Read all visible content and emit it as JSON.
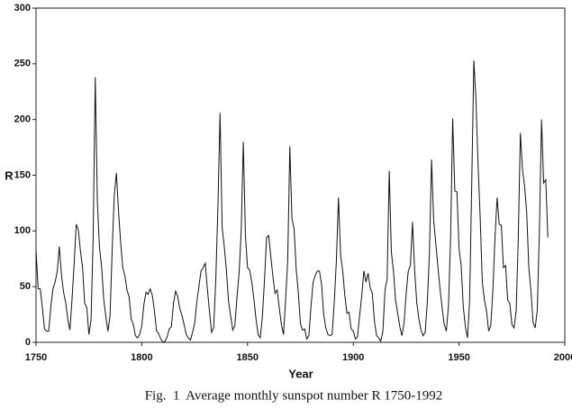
{
  "chart_data": {
    "type": "line",
    "caption": "Fig.  1  Average monthly sunspot number R 1750-1992",
    "x_label": "Year",
    "y_label": "R",
    "color": "#111111",
    "xlim": [
      1750,
      2000
    ],
    "ylim": [
      0,
      300
    ],
    "xticks": [
      1750,
      1800,
      1850,
      1900,
      1950,
      2000
    ],
    "yticks": [
      0,
      50,
      100,
      150,
      200,
      250,
      300
    ],
    "x": [
      1750,
      1751,
      1752,
      1753,
      1754,
      1755,
      1756,
      1757,
      1758,
      1759,
      1760,
      1761,
      1762,
      1763,
      1764,
      1765,
      1766,
      1767,
      1768,
      1769,
      1770,
      1771,
      1772,
      1773,
      1774,
      1775,
      1776,
      1777,
      1778,
      1779,
      1780,
      1781,
      1782,
      1783,
      1784,
      1785,
      1786,
      1787,
      1788,
      1789,
      1790,
      1791,
      1792,
      1793,
      1794,
      1795,
      1796,
      1797,
      1798,
      1799,
      1800,
      1801,
      1802,
      1803,
      1804,
      1805,
      1806,
      1807,
      1808,
      1809,
      1810,
      1811,
      1812,
      1813,
      1814,
      1815,
      1816,
      1817,
      1818,
      1819,
      1820,
      1821,
      1822,
      1823,
      1824,
      1825,
      1826,
      1827,
      1828,
      1829,
      1830,
      1831,
      1832,
      1833,
      1834,
      1835,
      1836,
      1837,
      1838,
      1839,
      1840,
      1841,
      1842,
      1843,
      1844,
      1845,
      1846,
      1847,
      1848,
      1849,
      1850,
      1851,
      1852,
      1853,
      1854,
      1855,
      1856,
      1857,
      1858,
      1859,
      1860,
      1861,
      1862,
      1863,
      1864,
      1865,
      1866,
      1867,
      1868,
      1869,
      1870,
      1871,
      1872,
      1873,
      1874,
      1875,
      1876,
      1877,
      1878,
      1879,
      1880,
      1881,
      1882,
      1883,
      1884,
      1885,
      1886,
      1887,
      1888,
      1889,
      1890,
      1891,
      1892,
      1893,
      1894,
      1895,
      1896,
      1897,
      1898,
      1899,
      1900,
      1901,
      1902,
      1903,
      1904,
      1905,
      1906,
      1907,
      1908,
      1909,
      1910,
      1911,
      1912,
      1913,
      1914,
      1915,
      1916,
      1917,
      1918,
      1919,
      1920,
      1921,
      1922,
      1923,
      1924,
      1925,
      1926,
      1927,
      1928,
      1929,
      1930,
      1931,
      1932,
      1933,
      1934,
      1935,
      1936,
      1937,
      1938,
      1939,
      1940,
      1941,
      1942,
      1943,
      1944,
      1945,
      1946,
      1947,
      1948,
      1949,
      1950,
      1951,
      1952,
      1953,
      1954,
      1955,
      1956,
      1957,
      1958,
      1959,
      1960,
      1961,
      1962,
      1963,
      1964,
      1965,
      1966,
      1967,
      1968,
      1969,
      1970,
      1971,
      1972,
      1973,
      1974,
      1975,
      1976,
      1977,
      1978,
      1979,
      1980,
      1981,
      1982,
      1983,
      1984,
      1985,
      1986,
      1987,
      1988,
      1989,
      1990,
      1991,
      1992
    ],
    "values": [
      83,
      48,
      48,
      31,
      12,
      10,
      10,
      32,
      48,
      54,
      63,
      86,
      61,
      45,
      36,
      21,
      11,
      38,
      70,
      106,
      101,
      82,
      67,
      35,
      31,
      7,
      20,
      93,
      238,
      126,
      85,
      68,
      39,
      23,
      10,
      24,
      83,
      132,
      152,
      118,
      90,
      67,
      60,
      47,
      41,
      21,
      16,
      6,
      4,
      7,
      15,
      34,
      45,
      43,
      48,
      42,
      28,
      10,
      8,
      3,
      0,
      1,
      5,
      12,
      14,
      35,
      46,
      41,
      30,
      24,
      16,
      7,
      4,
      2,
      9,
      17,
      36,
      50,
      64,
      67,
      71,
      48,
      28,
      9,
      13,
      57,
      122,
      206,
      103,
      86,
      65,
      37,
      24,
      11,
      15,
      40,
      62,
      99,
      180,
      96,
      67,
      65,
      54,
      39,
      21,
      7,
      4,
      23,
      55,
      94,
      96,
      77,
      59,
      44,
      47,
      31,
      16,
      7,
      38,
      74,
      176,
      111,
      102,
      66,
      45,
      17,
      11,
      12,
      3,
      6,
      32,
      54,
      60,
      64,
      64,
      52,
      25,
      13,
      7,
      6,
      7,
      36,
      73,
      130,
      78,
      64,
      42,
      26,
      27,
      12,
      10,
      3,
      5,
      24,
      42,
      64,
      54,
      62,
      49,
      44,
      19,
      6,
      4,
      1,
      10,
      47,
      57,
      154,
      81,
      64,
      38,
      26,
      14,
      6,
      17,
      44,
      64,
      69,
      108,
      65,
      36,
      21,
      11,
      6,
      9,
      36,
      80,
      164,
      110,
      89,
      68,
      48,
      31,
      16,
      10,
      33,
      93,
      201,
      136,
      135,
      84,
      69,
      32,
      14,
      4,
      38,
      142,
      253,
      218,
      159,
      112,
      54,
      38,
      28,
      10,
      15,
      47,
      94,
      130,
      106,
      105,
      67,
      69,
      38,
      35,
      16,
      13,
      28,
      93,
      188,
      155,
      140,
      116,
      67,
      46,
      18,
      13,
      29,
      100,
      200,
      143,
      146,
      94
    ]
  }
}
